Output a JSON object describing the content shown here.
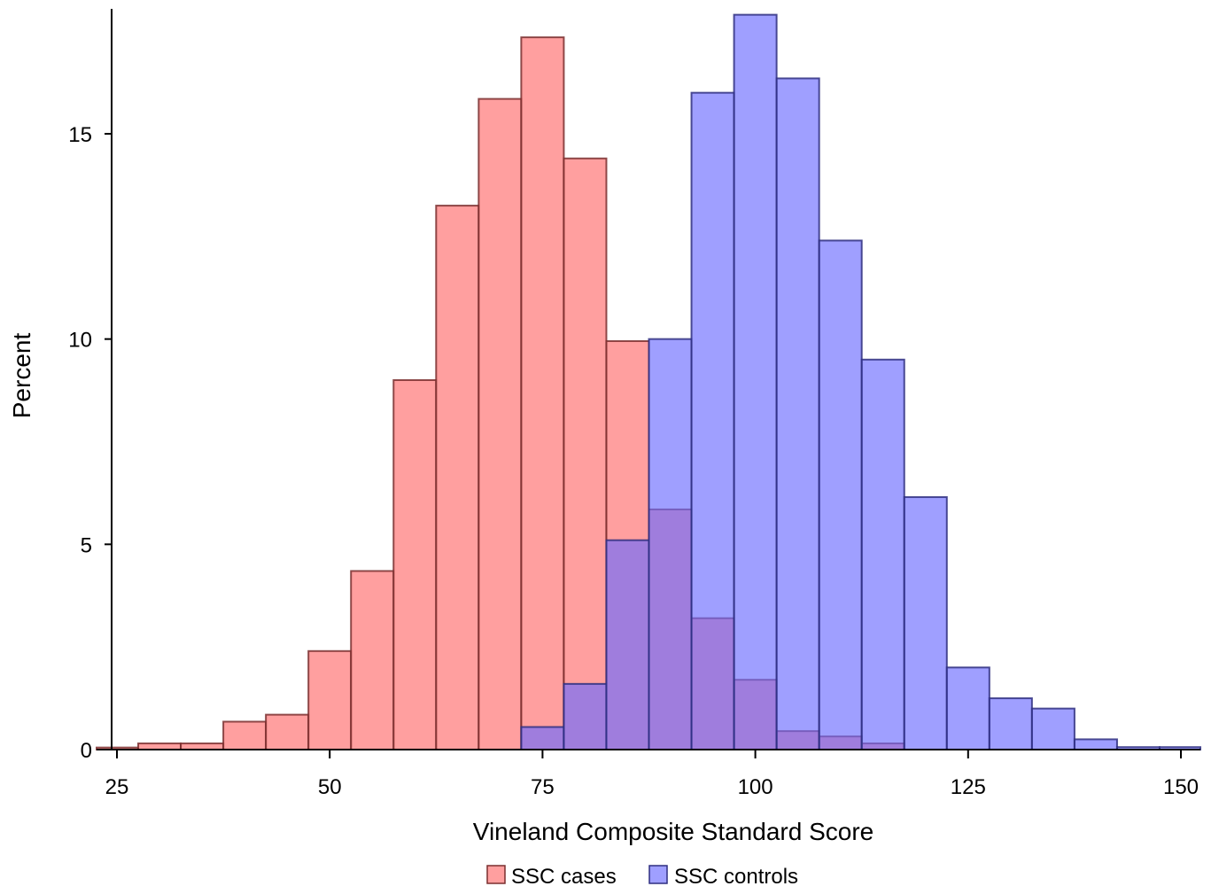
{
  "chart_data": {
    "type": "bar",
    "subtype": "overlapping-histogram",
    "title": "",
    "xlabel": "Vineland Composite Standard Score",
    "ylabel": "Percent",
    "xlim": [
      24,
      152
    ],
    "ylim": [
      0,
      17.9
    ],
    "bin_width": 5,
    "x_ticks": [
      25,
      50,
      75,
      100,
      125,
      150
    ],
    "y_ticks": [
      0,
      5,
      10,
      15
    ],
    "grid": false,
    "legend_position": "bottom-center",
    "series": [
      {
        "name": "SSC cases",
        "color": "#ff6b6b",
        "bins": [
          {
            "x0": 22.5,
            "x1": 27.5,
            "value": 0.05
          },
          {
            "x0": 27.5,
            "x1": 32.5,
            "value": 0.15
          },
          {
            "x0": 32.5,
            "x1": 37.5,
            "value": 0.15
          },
          {
            "x0": 37.5,
            "x1": 42.5,
            "value": 0.68
          },
          {
            "x0": 42.5,
            "x1": 47.5,
            "value": 0.85
          },
          {
            "x0": 47.5,
            "x1": 52.5,
            "value": 2.4
          },
          {
            "x0": 52.5,
            "x1": 57.5,
            "value": 4.35
          },
          {
            "x0": 57.5,
            "x1": 62.5,
            "value": 9.0
          },
          {
            "x0": 62.5,
            "x1": 67.5,
            "value": 13.25
          },
          {
            "x0": 67.5,
            "x1": 72.5,
            "value": 15.85
          },
          {
            "x0": 72.5,
            "x1": 77.5,
            "value": 17.35
          },
          {
            "x0": 77.5,
            "x1": 82.5,
            "value": 14.4
          },
          {
            "x0": 82.5,
            "x1": 87.5,
            "value": 9.95
          },
          {
            "x0": 87.5,
            "x1": 92.5,
            "value": 5.85
          },
          {
            "x0": 92.5,
            "x1": 97.5,
            "value": 3.2
          },
          {
            "x0": 97.5,
            "x1": 102.5,
            "value": 1.7
          },
          {
            "x0": 102.5,
            "x1": 107.5,
            "value": 0.45
          },
          {
            "x0": 107.5,
            "x1": 112.5,
            "value": 0.32
          },
          {
            "x0": 112.5,
            "x1": 117.5,
            "value": 0.15
          }
        ]
      },
      {
        "name": "SSC controls",
        "color": "#6b6bff",
        "bins": [
          {
            "x0": 72.5,
            "x1": 77.5,
            "value": 0.55
          },
          {
            "x0": 77.5,
            "x1": 82.5,
            "value": 1.6
          },
          {
            "x0": 82.5,
            "x1": 87.5,
            "value": 5.1
          },
          {
            "x0": 87.5,
            "x1": 92.5,
            "value": 10.0
          },
          {
            "x0": 92.5,
            "x1": 97.5,
            "value": 16.0
          },
          {
            "x0": 97.5,
            "x1": 102.5,
            "value": 17.9
          },
          {
            "x0": 102.5,
            "x1": 107.5,
            "value": 16.35
          },
          {
            "x0": 107.5,
            "x1": 112.5,
            "value": 12.4
          },
          {
            "x0": 112.5,
            "x1": 117.5,
            "value": 9.5
          },
          {
            "x0": 117.5,
            "x1": 122.5,
            "value": 6.15
          },
          {
            "x0": 122.5,
            "x1": 127.5,
            "value": 2.0
          },
          {
            "x0": 127.5,
            "x1": 132.5,
            "value": 1.25
          },
          {
            "x0": 132.5,
            "x1": 137.5,
            "value": 1.0
          },
          {
            "x0": 137.5,
            "x1": 142.5,
            "value": 0.25
          },
          {
            "x0": 142.5,
            "x1": 147.5,
            "value": 0.06
          },
          {
            "x0": 147.5,
            "x1": 152.5,
            "value": 0.06
          }
        ]
      }
    ]
  }
}
